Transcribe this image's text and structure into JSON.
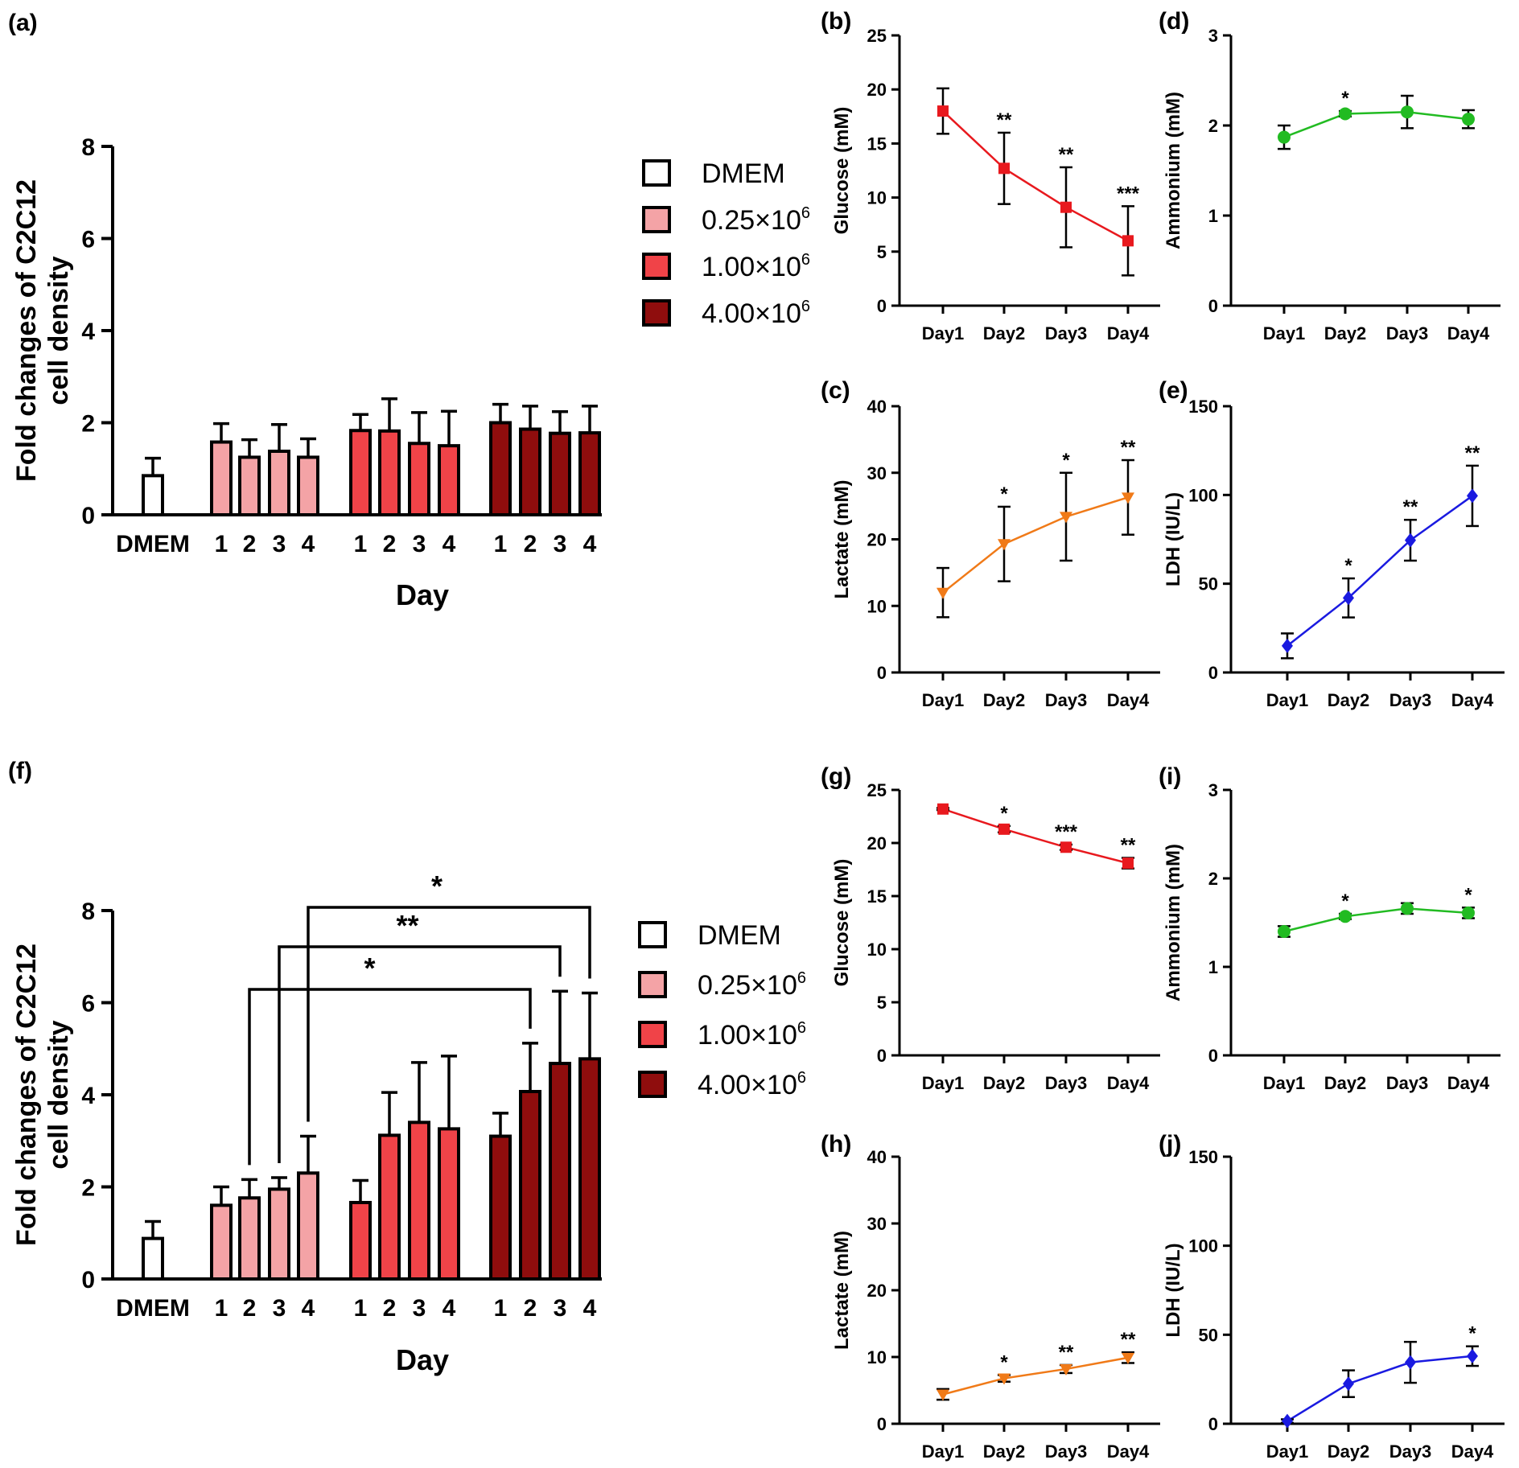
{
  "colors": {
    "dmem": "#ffffff",
    "c025": "#f4a3a6",
    "c100": "#f04348",
    "c400": "#8f0d0d",
    "glucose": "#e8191e",
    "lactate": "#f07a18",
    "ammonium": "#22bb22",
    "ldh": "#1a1ae0"
  },
  "legend": {
    "items": [
      {
        "label": "DMEM",
        "color_key": "dmem"
      },
      {
        "label": "0.25×10",
        "sup": "6",
        "color_key": "c025"
      },
      {
        "label": "1.00×10",
        "sup": "6",
        "color_key": "c100"
      },
      {
        "label": "4.00×10",
        "sup": "6",
        "color_key": "c400"
      }
    ]
  },
  "chart_data": [
    {
      "id": "a",
      "panel_label": "(a)",
      "type": "bar",
      "ylabel_line1": "Fold changes of C2C12",
      "ylabel_line2": "cell density",
      "xlabel": "Day",
      "ylim": [
        0,
        8
      ],
      "yticks": [
        "0",
        "2",
        "4",
        "6",
        "8"
      ],
      "group_labels": [
        "DMEM",
        "1",
        "2",
        "3",
        "4",
        "1",
        "2",
        "3",
        "4",
        "1",
        "2",
        "3",
        "4"
      ],
      "bars": [
        {
          "group": "DMEM",
          "value": 0.85,
          "err": 0.38
        },
        {
          "group": "0.25×10^6",
          "day": "1",
          "value": 1.58,
          "err": 0.4
        },
        {
          "group": "0.25×10^6",
          "day": "2",
          "value": 1.25,
          "err": 0.38
        },
        {
          "group": "0.25×10^6",
          "day": "3",
          "value": 1.38,
          "err": 0.58
        },
        {
          "group": "0.25×10^6",
          "day": "4",
          "value": 1.25,
          "err": 0.4
        },
        {
          "group": "1.00×10^6",
          "day": "1",
          "value": 1.83,
          "err": 0.35
        },
        {
          "group": "1.00×10^6",
          "day": "2",
          "value": 1.82,
          "err": 0.7
        },
        {
          "group": "1.00×10^6",
          "day": "3",
          "value": 1.55,
          "err": 0.67
        },
        {
          "group": "1.00×10^6",
          "day": "4",
          "value": 1.5,
          "err": 0.75
        },
        {
          "group": "4.00×10^6",
          "day": "1",
          "value": 2.0,
          "err": 0.4
        },
        {
          "group": "4.00×10^6",
          "day": "2",
          "value": 1.86,
          "err": 0.5
        },
        {
          "group": "4.00×10^6",
          "day": "3",
          "value": 1.77,
          "err": 0.47
        },
        {
          "group": "4.00×10^6",
          "day": "4",
          "value": 1.78,
          "err": 0.58
        }
      ],
      "brackets": []
    },
    {
      "id": "f",
      "panel_label": "(f)",
      "type": "bar",
      "ylabel_line1": "Fold changes of C2C12",
      "ylabel_line2": "cell density",
      "xlabel": "Day",
      "ylim": [
        0,
        8
      ],
      "yticks": [
        "0",
        "2",
        "4",
        "6",
        "8"
      ],
      "group_labels": [
        "DMEM",
        "1",
        "2",
        "3",
        "4",
        "1",
        "2",
        "3",
        "4",
        "1",
        "2",
        "3",
        "4"
      ],
      "bars": [
        {
          "group": "DMEM",
          "value": 0.88,
          "err": 0.37
        },
        {
          "group": "0.25×10^6",
          "day": "1",
          "value": 1.6,
          "err": 0.4
        },
        {
          "group": "0.25×10^6",
          "day": "2",
          "value": 1.76,
          "err": 0.4
        },
        {
          "group": "0.25×10^6",
          "day": "3",
          "value": 1.95,
          "err": 0.25
        },
        {
          "group": "0.25×10^6",
          "day": "4",
          "value": 2.3,
          "err": 0.8
        },
        {
          "group": "1.00×10^6",
          "day": "1",
          "value": 1.66,
          "err": 0.48
        },
        {
          "group": "1.00×10^6",
          "day": "2",
          "value": 3.12,
          "err": 0.93
        },
        {
          "group": "1.00×10^6",
          "day": "3",
          "value": 3.4,
          "err": 1.3
        },
        {
          "group": "1.00×10^6",
          "day": "4",
          "value": 3.26,
          "err": 1.58
        },
        {
          "group": "4.00×10^6",
          "day": "1",
          "value": 3.1,
          "err": 0.5
        },
        {
          "group": "4.00×10^6",
          "day": "2",
          "value": 4.07,
          "err": 1.05
        },
        {
          "group": "4.00×10^6",
          "day": "3",
          "value": 4.68,
          "err": 1.57
        },
        {
          "group": "4.00×10^6",
          "day": "4",
          "value": 4.78,
          "err": 1.43
        }
      ],
      "brackets": [
        {
          "from_bar": 2,
          "to_bar": 10,
          "label": "*"
        },
        {
          "from_bar": 3,
          "to_bar": 11,
          "label": "**"
        },
        {
          "from_bar": 4,
          "to_bar": 12,
          "label": "*"
        }
      ]
    },
    {
      "id": "b",
      "panel_label": "(b)",
      "type": "line",
      "color_key": "glucose",
      "marker": "square",
      "ylabel": "Glucose (mM)",
      "ylim": [
        0,
        25
      ],
      "yticks": [
        "0",
        "5",
        "10",
        "15",
        "20",
        "25"
      ],
      "categories": [
        "Day1",
        "Day2",
        "Day3",
        "Day4"
      ],
      "values": [
        18.0,
        12.7,
        9.1,
        6.0
      ],
      "errors": [
        2.1,
        3.3,
        3.7,
        3.2
      ],
      "sig": [
        "",
        "**",
        "**",
        "***"
      ]
    },
    {
      "id": "d",
      "panel_label": "(d)",
      "type": "line",
      "color_key": "ammonium",
      "marker": "circle",
      "ylabel": "Ammonium (mM)",
      "ylim": [
        0,
        3
      ],
      "yticks": [
        "0",
        "1",
        "2",
        "3"
      ],
      "categories": [
        "Day1",
        "Day2",
        "Day3",
        "Day4"
      ],
      "values": [
        1.87,
        2.13,
        2.15,
        2.07
      ],
      "errors": [
        0.13,
        0.03,
        0.18,
        0.1
      ],
      "sig": [
        "",
        "*",
        "",
        ""
      ]
    },
    {
      "id": "c",
      "panel_label": "(c)",
      "type": "line",
      "color_key": "lactate",
      "marker": "triangle-down",
      "ylabel": "Lactate (mM)",
      "ylim": [
        0,
        40
      ],
      "yticks": [
        "0",
        "10",
        "20",
        "30",
        "40"
      ],
      "categories": [
        "Day1",
        "Day2",
        "Day3",
        "Day4"
      ],
      "values": [
        12.0,
        19.3,
        23.4,
        26.3
      ],
      "errors": [
        3.7,
        5.6,
        6.6,
        5.6
      ],
      "sig": [
        "",
        "*",
        "*",
        "**"
      ]
    },
    {
      "id": "e",
      "panel_label": "(e)",
      "type": "line",
      "color_key": "ldh",
      "marker": "diamond",
      "ylabel": "LDH (IU/L)",
      "ylim": [
        0,
        150
      ],
      "yticks": [
        "0",
        "50",
        "100",
        "150"
      ],
      "categories": [
        "Day1",
        "Day2",
        "Day3",
        "Day4"
      ],
      "values": [
        15.0,
        42.0,
        74.5,
        99.5
      ],
      "errors": [
        7.0,
        11.0,
        11.5,
        17.0
      ],
      "sig": [
        "",
        "*",
        "**",
        "**"
      ]
    },
    {
      "id": "g",
      "panel_label": "(g)",
      "type": "line",
      "color_key": "glucose",
      "marker": "square",
      "ylabel": "Glucose (mM)",
      "ylim": [
        0,
        25
      ],
      "yticks": [
        "0",
        "5",
        "10",
        "15",
        "20",
        "25"
      ],
      "categories": [
        "Day1",
        "Day2",
        "Day3",
        "Day4"
      ],
      "values": [
        23.2,
        21.3,
        19.6,
        18.1
      ],
      "errors": [
        0.1,
        0.3,
        0.25,
        0.5
      ],
      "sig": [
        "",
        "*",
        "***",
        "**"
      ]
    },
    {
      "id": "i",
      "panel_label": "(i)",
      "type": "line",
      "color_key": "ammonium",
      "marker": "circle",
      "ylabel": "Ammonium (mM)",
      "ylim": [
        0,
        3
      ],
      "yticks": [
        "0",
        "1",
        "2",
        "3"
      ],
      "categories": [
        "Day1",
        "Day2",
        "Day3",
        "Day4"
      ],
      "values": [
        1.4,
        1.57,
        1.66,
        1.61
      ],
      "errors": [
        0.06,
        0.03,
        0.06,
        0.06
      ],
      "sig": [
        "",
        "*",
        "",
        "*"
      ]
    },
    {
      "id": "h",
      "panel_label": "(h)",
      "type": "line",
      "color_key": "lactate",
      "marker": "triangle-down",
      "ylabel": "Lactate (mM)",
      "ylim": [
        0,
        40
      ],
      "yticks": [
        "0",
        "10",
        "20",
        "30",
        "40"
      ],
      "categories": [
        "Day1",
        "Day2",
        "Day3",
        "Day4"
      ],
      "values": [
        4.4,
        6.8,
        8.2,
        9.9
      ],
      "errors": [
        0.8,
        0.5,
        0.6,
        0.8
      ],
      "sig": [
        "",
        "*",
        "**",
        "**"
      ]
    },
    {
      "id": "j",
      "panel_label": "(j)",
      "type": "line",
      "color_key": "ldh",
      "marker": "diamond",
      "ylabel": "LDH (IU/L)",
      "ylim": [
        0,
        150
      ],
      "yticks": [
        "0",
        "50",
        "100",
        "150"
      ],
      "categories": [
        "Day1",
        "Day2",
        "Day3",
        "Day4"
      ],
      "values": [
        1.5,
        22.5,
        34.5,
        38.0
      ],
      "errors": [
        1.0,
        7.5,
        11.5,
        5.5
      ],
      "sig": [
        "",
        "",
        "",
        "*"
      ]
    }
  ]
}
